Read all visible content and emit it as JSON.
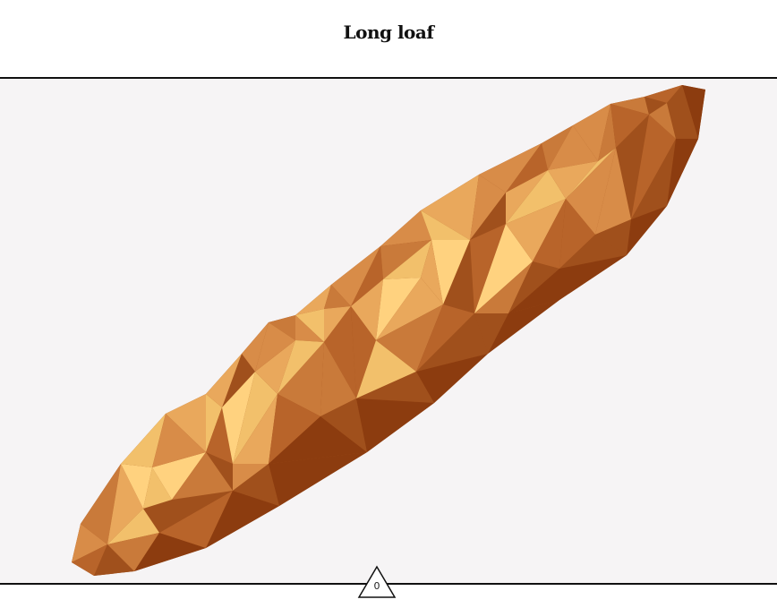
{
  "header": {
    "title": "Long loaf"
  },
  "item": {
    "name": "baguette",
    "palette": [
      "#ffd27f",
      "#f2c06b",
      "#e9a85c",
      "#d88c48",
      "#c97a3a",
      "#b8642a",
      "#a0501c",
      "#8c3c0f"
    ]
  },
  "footer": {
    "counter_value": "0"
  },
  "icons": {
    "counter": "triangle-badge-icon"
  }
}
